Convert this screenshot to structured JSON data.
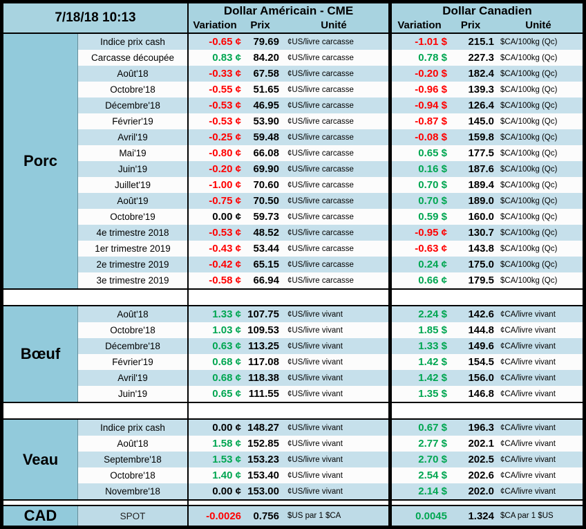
{
  "header": {
    "date": "7/18/18 10:13",
    "us_title": "Dollar Américain - CME",
    "ca_title": "Dollar Canadien",
    "columns": {
      "variation": "Variation",
      "prix": "Prix",
      "unite": "Unité"
    }
  },
  "colors": {
    "red": "#FF0000",
    "green": "#00A651",
    "header_bg": "#A8D3E0",
    "side_bg": "#92CADB",
    "stripe_bg": "#C6E0EB",
    "row_white": "#FCFCFC",
    "cad_row_bg": "#BEDBE7",
    "border": "#000000"
  },
  "sections": [
    {
      "name": "Porc",
      "rows": [
        {
          "label": "Indice prix cash",
          "us": {
            "var": "-0.65 ¢",
            "prix": "79.69",
            "unit": "¢US/livre carcasse"
          },
          "ca": {
            "var": "-1.01 $",
            "prix": "215.1",
            "unit": "$CA/100kg (Qc)"
          }
        },
        {
          "label": "Carcasse découpée",
          "us": {
            "var": "0.83 ¢",
            "prix": "84.20",
            "unit": "¢US/livre carcasse"
          },
          "ca": {
            "var": "0.78 $",
            "prix": "227.3",
            "unit": "$CA/100kg (Qc)"
          }
        },
        {
          "label": "Août'18",
          "us": {
            "var": "-0.33 ¢",
            "prix": "67.58",
            "unit": "¢US/livre carcasse"
          },
          "ca": {
            "var": "-0.20 $",
            "prix": "182.4",
            "unit": "$CA/100kg (Qc)"
          }
        },
        {
          "label": "Octobre'18",
          "us": {
            "var": "-0.55 ¢",
            "prix": "51.65",
            "unit": "¢US/livre carcasse"
          },
          "ca": {
            "var": "-0.96 $",
            "prix": "139.3",
            "unit": "$CA/100kg (Qc)"
          }
        },
        {
          "label": "Décembre'18",
          "us": {
            "var": "-0.53 ¢",
            "prix": "46.95",
            "unit": "¢US/livre carcasse"
          },
          "ca": {
            "var": "-0.94 $",
            "prix": "126.4",
            "unit": "$CA/100kg (Qc)"
          }
        },
        {
          "label": "Février'19",
          "us": {
            "var": "-0.53 ¢",
            "prix": "53.90",
            "unit": "¢US/livre carcasse"
          },
          "ca": {
            "var": "-0.87 $",
            "prix": "145.0",
            "unit": "$CA/100kg (Qc)"
          }
        },
        {
          "label": "Avril'19",
          "us": {
            "var": "-0.25 ¢",
            "prix": "59.48",
            "unit": "¢US/livre carcasse"
          },
          "ca": {
            "var": "-0.08 $",
            "prix": "159.8",
            "unit": "$CA/100kg (Qc)"
          }
        },
        {
          "label": "Mai'19",
          "us": {
            "var": "-0.80 ¢",
            "prix": "66.08",
            "unit": "¢US/livre carcasse"
          },
          "ca": {
            "var": "0.65 $",
            "prix": "177.5",
            "unit": "$CA/100kg (Qc)"
          }
        },
        {
          "label": "Juin'19",
          "us": {
            "var": "-0.20 ¢",
            "prix": "69.90",
            "unit": "¢US/livre carcasse"
          },
          "ca": {
            "var": "0.16 $",
            "prix": "187.6",
            "unit": "$CA/100kg (Qc)"
          }
        },
        {
          "label": "Juillet'19",
          "us": {
            "var": "-1.00 ¢",
            "prix": "70.60",
            "unit": "¢US/livre carcasse"
          },
          "ca": {
            "var": "0.70 $",
            "prix": "189.4",
            "unit": "$CA/100kg (Qc)"
          }
        },
        {
          "label": "Août'19",
          "us": {
            "var": "-0.75 ¢",
            "prix": "70.50",
            "unit": "¢US/livre carcasse"
          },
          "ca": {
            "var": "0.70 $",
            "prix": "189.0",
            "unit": "$CA/100kg (Qc)"
          }
        },
        {
          "label": "Octobre'19",
          "us": {
            "var": "0.00 ¢",
            "prix": "59.73",
            "unit": "¢US/livre carcasse"
          },
          "ca": {
            "var": "0.59 $",
            "prix": "160.0",
            "unit": "$CA/100kg (Qc)"
          }
        },
        {
          "label": "4e trimestre 2018",
          "us": {
            "var": "-0.53 ¢",
            "prix": "48.52",
            "unit": "¢US/livre carcasse"
          },
          "ca": {
            "var": "-0.95 ¢",
            "prix": "130.7",
            "unit": "$CA/100kg (Qc)"
          }
        },
        {
          "label": "1er trimestre 2019",
          "us": {
            "var": "-0.43 ¢",
            "prix": "53.44",
            "unit": "¢US/livre carcasse"
          },
          "ca": {
            "var": "-0.63 ¢",
            "prix": "143.8",
            "unit": "$CA/100kg (Qc)"
          }
        },
        {
          "label": "2e trimestre 2019",
          "us": {
            "var": "-0.42 ¢",
            "prix": "65.15",
            "unit": "¢US/livre carcasse"
          },
          "ca": {
            "var": "0.24 ¢",
            "prix": "175.0",
            "unit": "$CA/100kg (Qc)"
          }
        },
        {
          "label": "3e trimestre 2019",
          "us": {
            "var": "-0.58 ¢",
            "prix": "66.94",
            "unit": "¢US/livre carcasse"
          },
          "ca": {
            "var": "0.66 ¢",
            "prix": "179.5",
            "unit": "$CA/100kg (Qc)"
          }
        }
      ]
    },
    {
      "name": "Bœuf",
      "rows": [
        {
          "label": "Août'18",
          "us": {
            "var": "1.33 ¢",
            "prix": "107.75",
            "unit": "¢US/livre vivant"
          },
          "ca": {
            "var": "2.24 $",
            "prix": "142.6",
            "unit": "¢CA/livre vivant"
          }
        },
        {
          "label": "Octobre'18",
          "us": {
            "var": "1.03 ¢",
            "prix": "109.53",
            "unit": "¢US/livre vivant"
          },
          "ca": {
            "var": "1.85 $",
            "prix": "144.8",
            "unit": "¢CA/livre vivant"
          }
        },
        {
          "label": "Décembre'18",
          "us": {
            "var": "0.63 ¢",
            "prix": "113.25",
            "unit": "¢US/livre vivant"
          },
          "ca": {
            "var": "1.33 $",
            "prix": "149.6",
            "unit": "¢CA/livre vivant"
          }
        },
        {
          "label": "Février'19",
          "us": {
            "var": "0.68 ¢",
            "prix": "117.08",
            "unit": "¢US/livre vivant"
          },
          "ca": {
            "var": "1.42 $",
            "prix": "154.5",
            "unit": "¢CA/livre vivant"
          }
        },
        {
          "label": "Avril'19",
          "us": {
            "var": "0.68 ¢",
            "prix": "118.38",
            "unit": "¢US/livre vivant"
          },
          "ca": {
            "var": "1.42 $",
            "prix": "156.0",
            "unit": "¢CA/livre vivant"
          }
        },
        {
          "label": "Juin'19",
          "us": {
            "var": "0.65 ¢",
            "prix": "111.55",
            "unit": "¢US/livre vivant"
          },
          "ca": {
            "var": "1.35 $",
            "prix": "146.8",
            "unit": "¢CA/livre vivant"
          }
        }
      ]
    },
    {
      "name": "Veau",
      "rows": [
        {
          "label": "Indice prix cash",
          "us": {
            "var": "0.00 ¢",
            "prix": "148.27",
            "unit": "¢US/livre vivant"
          },
          "ca": {
            "var": "0.67 $",
            "prix": "196.3",
            "unit": "¢CA/livre vivant"
          }
        },
        {
          "label": "Août'18",
          "us": {
            "var": "1.58 ¢",
            "prix": "152.85",
            "unit": "¢US/livre vivant"
          },
          "ca": {
            "var": "2.77 $",
            "prix": "202.1",
            "unit": "¢CA/livre vivant"
          }
        },
        {
          "label": "Septembre'18",
          "us": {
            "var": "1.53 ¢",
            "prix": "153.23",
            "unit": "¢US/livre vivant"
          },
          "ca": {
            "var": "2.70 $",
            "prix": "202.5",
            "unit": "¢CA/livre vivant"
          }
        },
        {
          "label": "Octobre'18",
          "us": {
            "var": "1.40 ¢",
            "prix": "153.40",
            "unit": "¢US/livre vivant"
          },
          "ca": {
            "var": "2.54 $",
            "prix": "202.6",
            "unit": "¢CA/livre vivant"
          }
        },
        {
          "label": "Novembre'18",
          "us": {
            "var": "0.00 ¢",
            "prix": "153.00",
            "unit": "¢US/livre vivant"
          },
          "ca": {
            "var": "2.14 $",
            "prix": "202.0",
            "unit": "¢CA/livre vivant"
          }
        }
      ]
    },
    {
      "name": "CAD",
      "spot": true,
      "rows": [
        {
          "label": "SPOT",
          "us": {
            "var": "-0.0026",
            "prix": "0.756",
            "unit": "$US par 1 $CA"
          },
          "ca": {
            "var": "0.0045",
            "prix": "1.324",
            "unit": "$CA par 1 $US"
          }
        }
      ]
    }
  ]
}
